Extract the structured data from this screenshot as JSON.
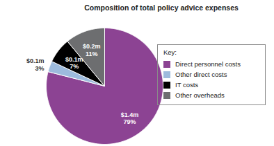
{
  "chart_data": {
    "type": "pie",
    "title": "Composition of total policy advice expenses",
    "categories": [
      "Direct personnel costs",
      "Other direct costs",
      "IT costs",
      "Other overheads"
    ],
    "values": [
      79,
      3,
      7,
      11
    ],
    "value_labels": [
      "79%",
      "3%",
      "7%",
      "11%"
    ],
    "amount_labels": [
      "$1.4m",
      "$0.1m",
      "$0.1m",
      "$0.2m"
    ],
    "colors": [
      "#8c4393",
      "#9dbbdd",
      "#000000",
      "#6d6e70"
    ],
    "data_labels": true,
    "legend": "right",
    "legend_title": "Key:"
  }
}
